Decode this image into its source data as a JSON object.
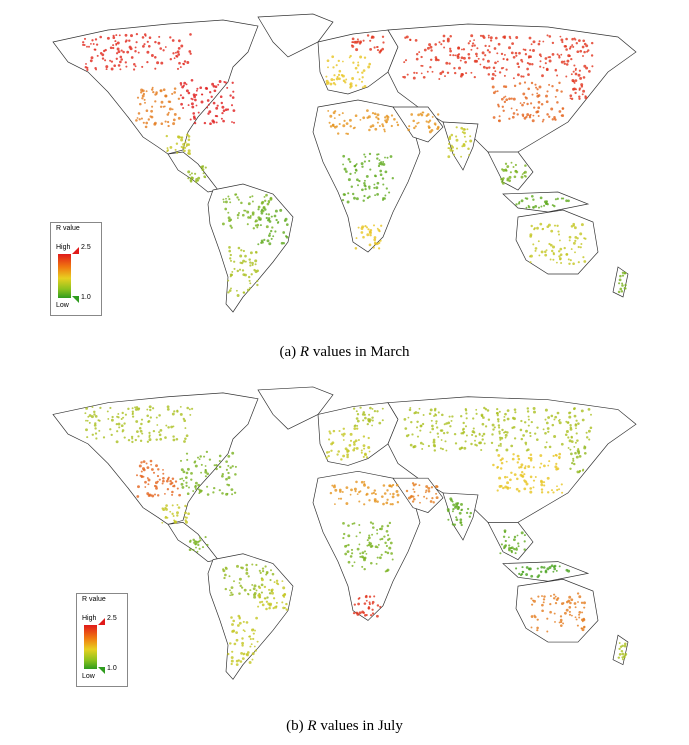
{
  "panels": [
    {
      "id": "a",
      "caption_prefix": "(a) ",
      "caption_var": "R",
      "caption_suffix": " values in March",
      "legend": {
        "title": "R value",
        "high_label": "High",
        "low_label": "Low",
        "max": "2.5",
        "min": "1.0"
      },
      "regions": [
        {
          "name": "north-america-north",
          "value": 2.45
        },
        {
          "name": "usa-east",
          "value": 2.5
        },
        {
          "name": "usa-west",
          "value": 2.1
        },
        {
          "name": "mexico",
          "value": 1.6
        },
        {
          "name": "central-america",
          "value": 1.4
        },
        {
          "name": "south-america-north",
          "value": 1.3
        },
        {
          "name": "brazil-east",
          "value": 1.2
        },
        {
          "name": "south-america-south",
          "value": 1.5
        },
        {
          "name": "europe-west",
          "value": 1.8
        },
        {
          "name": "scandinavia",
          "value": 2.4
        },
        {
          "name": "russia",
          "value": 2.4
        },
        {
          "name": "north-africa",
          "value": 2.0
        },
        {
          "name": "central-africa",
          "value": 1.2
        },
        {
          "name": "southern-africa",
          "value": 1.8
        },
        {
          "name": "middle-east",
          "value": 2.0
        },
        {
          "name": "india",
          "value": 1.6
        },
        {
          "name": "china",
          "value": 2.2
        },
        {
          "name": "japan",
          "value": 2.4
        },
        {
          "name": "southeast-asia",
          "value": 1.3
        },
        {
          "name": "indonesia",
          "value": 1.2
        },
        {
          "name": "australia",
          "value": 1.6
        },
        {
          "name": "new-zealand",
          "value": 1.3
        }
      ]
    },
    {
      "id": "b",
      "caption_prefix": "(b) ",
      "caption_var": "R",
      "caption_suffix": " values in July",
      "legend": {
        "title": "R value",
        "high_label": "High",
        "low_label": "Low",
        "max": "2.5",
        "min": "1.0"
      },
      "regions": [
        {
          "name": "north-america-north",
          "value": 1.5
        },
        {
          "name": "usa-east",
          "value": 1.3
        },
        {
          "name": "usa-west",
          "value": 2.2
        },
        {
          "name": "mexico",
          "value": 1.6
        },
        {
          "name": "central-america",
          "value": 1.3
        },
        {
          "name": "south-america-north",
          "value": 1.4
        },
        {
          "name": "brazil-east",
          "value": 1.6
        },
        {
          "name": "south-america-south",
          "value": 1.6
        },
        {
          "name": "europe-west",
          "value": 1.6
        },
        {
          "name": "scandinavia",
          "value": 1.5
        },
        {
          "name": "russia",
          "value": 1.5
        },
        {
          "name": "north-africa",
          "value": 2.0
        },
        {
          "name": "central-africa",
          "value": 1.3
        },
        {
          "name": "southern-africa",
          "value": 2.4
        },
        {
          "name": "middle-east",
          "value": 2.1
        },
        {
          "name": "india",
          "value": 1.2
        },
        {
          "name": "china",
          "value": 1.8
        },
        {
          "name": "japan",
          "value": 1.4
        },
        {
          "name": "southeast-asia",
          "value": 1.2
        },
        {
          "name": "indonesia",
          "value": 1.1
        },
        {
          "name": "australia",
          "value": 2.1
        },
        {
          "name": "new-zealand",
          "value": 1.5
        }
      ]
    }
  ],
  "colors": {
    "high": "#e01a1a",
    "mid": "#e8d020",
    "low": "#2f9c1e",
    "border": "#333333"
  }
}
